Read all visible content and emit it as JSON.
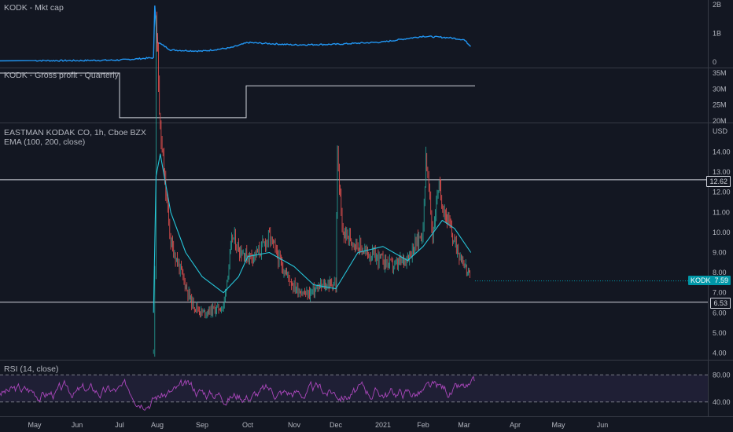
{
  "mktcap": {
    "title": "KODK - Mkt cap",
    "axis_ticks": [
      "2B",
      "1B",
      "0"
    ],
    "color": "#2196f3"
  },
  "gross": {
    "title": "KODK - Gross profit - Quarterly",
    "axis_ticks": [
      "35M",
      "30M",
      "25M",
      "20M"
    ],
    "color": "#d1d4dc"
  },
  "main": {
    "title": "EASTMAN KODAK CO, 1h, Cboe BZX",
    "indicator": "EMA (100, 200, close)",
    "currency": "USD",
    "axis_ticks": [
      "14.00",
      "13.00",
      "12.00",
      "11.00",
      "10.00",
      "9.00",
      "8.00",
      "7.00",
      "6.00",
      "5.00",
      "4.00"
    ],
    "hline_upper_label": "12.62",
    "hline_lower_label": "6.53",
    "last_symbol": "KODK",
    "last_price": "7.59",
    "up_color": "#26a69a",
    "down_color": "#ef5350",
    "ema_color": "#26c6da",
    "last_color": "#0097a7"
  },
  "rsi": {
    "title": "RSI (14, close)",
    "axis_ticks": [
      "80.00",
      "40.00"
    ],
    "line_color": "#ab47bc",
    "band_color": "#7e57c2"
  },
  "time_axis": [
    "May",
    "Jun",
    "Jul",
    "Aug",
    "Sep",
    "Oct",
    "Nov",
    "Dec",
    "2021",
    "Feb",
    "Mar",
    "Apr",
    "May",
    "Jun"
  ],
  "chart_data": [
    {
      "type": "area",
      "title": "KODK - Mkt cap",
      "x": [
        "May",
        "Jun",
        "Jul",
        "Jul 28",
        "Jul 29",
        "Aug",
        "Aug 10",
        "Sep",
        "Sep 20",
        "Oct",
        "Nov",
        "Dec",
        "2021",
        "Feb",
        "Feb 20",
        "Mar",
        "Mar 5"
      ],
      "values": [
        0.05,
        0.05,
        0.07,
        0.15,
        1.95,
        0.7,
        0.42,
        0.38,
        0.5,
        0.68,
        0.6,
        0.62,
        0.7,
        0.9,
        0.85,
        0.78,
        0.55
      ],
      "ylim": [
        0,
        2
      ],
      "unit": "B"
    },
    {
      "type": "line",
      "title": "KODK - Gross profit - Quarterly",
      "x": [
        "May",
        "Jul",
        "Jul 1",
        "Oct",
        "Oct 1",
        "Mar 5"
      ],
      "values": [
        35,
        35,
        21,
        21,
        31,
        31
      ],
      "ylim": [
        20,
        35
      ],
      "unit": "M"
    },
    {
      "type": "line",
      "title": "EASTMAN KODAK CO, 1h, Cboe BZX",
      "series": [
        {
          "name": "KODK",
          "x": [
            "Jul 28",
            "Jul 29",
            "Jul 30",
            "Aug 3",
            "Aug 6",
            "Aug 10",
            "Aug 17",
            "Aug 24",
            "Sep",
            "Sep 10",
            "Sep 15",
            "Sep 21",
            "Sep 25",
            "Oct",
            "Oct 8",
            "Oct 15",
            "Oct 22",
            "Nov",
            "Nov 10",
            "Nov 20",
            "Nov 30",
            "Dec",
            "Dec 2",
            "Dec 5",
            "Dec 12",
            "Dec 20",
            "2021",
            "Jan 10",
            "Jan 20",
            "Jan 28",
            "Feb",
            "Feb 3",
            "Feb 8",
            "Feb 12",
            "Feb 18",
            "Feb 24",
            "Mar",
            "Mar 3",
            "Mar 5"
          ],
          "values": [
            4.0,
            8.5,
            21.0,
            15.0,
            12.5,
            9.5,
            8.0,
            6.5,
            6.0,
            6.2,
            6.3,
            9.8,
            9.2,
            8.8,
            9.0,
            9.8,
            8.5,
            7.3,
            6.9,
            7.3,
            7.5,
            7.2,
            14.0,
            10.0,
            9.6,
            9.0,
            8.6,
            8.3,
            8.8,
            9.6,
            10.2,
            13.9,
            9.8,
            12.3,
            10.8,
            9.5,
            8.5,
            8.0,
            7.59
          ]
        },
        {
          "name": "EMA",
          "x": [
            "Jul 28",
            "Jul 30",
            "Aug 3",
            "Aug 10",
            "Aug 20",
            "Sep",
            "Sep 15",
            "Sep 25",
            "Oct",
            "Oct 15",
            "Nov",
            "Nov 15",
            "Dec",
            "Dec 15",
            "2021",
            "Jan 20",
            "Feb",
            "Feb 15",
            "Feb 24",
            "Mar 5"
          ],
          "values": [
            6.0,
            12.8,
            13.9,
            11.0,
            9.0,
            7.8,
            7.0,
            7.8,
            8.8,
            9.0,
            8.3,
            7.4,
            7.2,
            9.0,
            9.3,
            8.6,
            9.3,
            10.6,
            10.2,
            9.0
          ]
        }
      ],
      "hlines": [
        12.62,
        6.53
      ],
      "ylim": [
        3.7,
        15.9
      ],
      "ylabel": "USD"
    },
    {
      "type": "line",
      "title": "RSI (14, close)",
      "band": [
        40,
        80
      ],
      "ylim": [
        20,
        100
      ]
    }
  ]
}
